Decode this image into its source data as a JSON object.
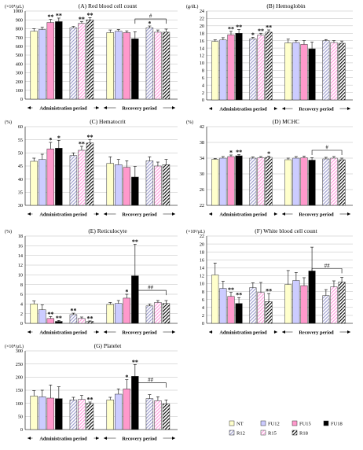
{
  "colors": {
    "NT": "#ffffcc",
    "FU12": "#ccccff",
    "FU15": "#ff99cc",
    "FU18": "#000000",
    "R12": "#9999cc",
    "R15": "#ffccff",
    "R18": "#000000",
    "edge": "#333333"
  },
  "legend": {
    "placement": "bottom-right",
    "items": [
      {
        "key": "NT",
        "label": "NT",
        "pattern": "solid"
      },
      {
        "key": "FU12",
        "label": "FU12",
        "pattern": "solid"
      },
      {
        "key": "FU15",
        "label": "FU15",
        "pattern": "solid"
      },
      {
        "key": "FU18",
        "label": "FU18",
        "pattern": "solid"
      },
      {
        "key": "R12",
        "label": "R12",
        "pattern": "hatch"
      },
      {
        "key": "R15",
        "label": "R15",
        "pattern": "hatch"
      },
      {
        "key": "R18",
        "label": "R18",
        "pattern": "hatch"
      }
    ]
  },
  "chart_data": [
    {
      "type": "bar",
      "title": "(A)  Red blood cell count",
      "ylabel": "(×10⁴/μL)",
      "ylim": [
        0,
        1000
      ],
      "yticks": [
        0,
        100,
        200,
        300,
        400,
        500,
        600,
        700,
        800,
        900,
        1000
      ],
      "period_labels": [
        "Administration  period",
        "Recovery period"
      ],
      "groups": [
        {
          "period": "Administration  period",
          "bars": [
            {
              "series": "NT",
              "value": 770,
              "err": 28,
              "sig": ""
            },
            {
              "series": "FU12",
              "value": 790,
              "err": 25,
              "sig": ""
            },
            {
              "series": "FU15",
              "value": 870,
              "err": 35,
              "sig": "**"
            },
            {
              "series": "FU18",
              "value": 880,
              "err": 40,
              "sig": "**"
            },
            {
              "series": "R12",
              "value": 810,
              "err": 15,
              "sig": ""
            },
            {
              "series": "R15",
              "value": 860,
              "err": 20,
              "sig": "**"
            },
            {
              "series": "R18",
              "value": 900,
              "err": 25,
              "sig": "**"
            }
          ]
        },
        {
          "period": "Recovery period",
          "bars": [
            {
              "series": "NT",
              "value": 755,
              "err": 30,
              "sig": ""
            },
            {
              "series": "FU12",
              "value": 770,
              "err": 20,
              "sig": ""
            },
            {
              "series": "FU15",
              "value": 755,
              "err": 20,
              "sig": ""
            },
            {
              "series": "FU18",
              "value": 685,
              "err": 80,
              "sig": ""
            },
            {
              "series": "R12",
              "value": 810,
              "err": 20,
              "sig": "*"
            },
            {
              "series": "R15",
              "value": 760,
              "err": 25,
              "sig": ""
            },
            {
              "series": "R18",
              "value": 760,
              "err": 35,
              "sig": ""
            }
          ]
        }
      ],
      "brackets": [
        {
          "group": 1,
          "from": "FU18",
          "to": "R18",
          "y": 910,
          "label": "#"
        }
      ]
    },
    {
      "type": "bar",
      "title": "(B)  Hemoglobin",
      "ylabel": "(g/dL)",
      "ylim": [
        0,
        24
      ],
      "yticks": [
        0,
        2,
        4,
        6,
        8,
        10,
        12,
        14,
        16,
        18,
        20,
        22,
        24
      ],
      "period_labels": [
        "Administration  period",
        "Recovery period"
      ],
      "groups": [
        {
          "period": "Administration  period",
          "bars": [
            {
              "series": "NT",
              "value": 15.8,
              "err": 0.4,
              "sig": ""
            },
            {
              "series": "FU12",
              "value": 16.2,
              "err": 0.6,
              "sig": ""
            },
            {
              "series": "FU15",
              "value": 17.6,
              "err": 0.9,
              "sig": "**"
            },
            {
              "series": "FU18",
              "value": 18.0,
              "err": 1.0,
              "sig": "**"
            },
            {
              "series": "R12",
              "value": 16.5,
              "err": 0.4,
              "sig": "*"
            },
            {
              "series": "R15",
              "value": 17.5,
              "err": 0.5,
              "sig": "**"
            },
            {
              "series": "R18",
              "value": 18.3,
              "err": 0.6,
              "sig": "**"
            }
          ]
        },
        {
          "period": "Recovery period",
          "bars": [
            {
              "series": "NT",
              "value": 15.4,
              "err": 1.0,
              "sig": ""
            },
            {
              "series": "FU12",
              "value": 15.5,
              "err": 0.5,
              "sig": ""
            },
            {
              "series": "FU15",
              "value": 15.0,
              "err": 1.0,
              "sig": ""
            },
            {
              "series": "FU18",
              "value": 13.8,
              "err": 1.8,
              "sig": ""
            },
            {
              "series": "R12",
              "value": 16.0,
              "err": 0.3,
              "sig": ""
            },
            {
              "series": "R15",
              "value": 15.5,
              "err": 0.5,
              "sig": ""
            },
            {
              "series": "R18",
              "value": 15.3,
              "err": 0.6,
              "sig": ""
            }
          ]
        }
      ],
      "brackets": []
    },
    {
      "type": "bar",
      "title": "(C)  Hematocrit",
      "ylabel": "(%)",
      "ylim": [
        30,
        60
      ],
      "yticks": [
        30,
        35,
        40,
        45,
        50,
        55,
        60
      ],
      "period_labels": [
        "Administration  period",
        "Recovery period"
      ],
      "groups": [
        {
          "period": "Administration  period",
          "bars": [
            {
              "series": "NT",
              "value": 46.8,
              "err": 1.2,
              "sig": ""
            },
            {
              "series": "FU12",
              "value": 47.5,
              "err": 2.0,
              "sig": ""
            },
            {
              "series": "FU15",
              "value": 51.5,
              "err": 2.5,
              "sig": "*"
            },
            {
              "series": "FU18",
              "value": 51.8,
              "err": 3.0,
              "sig": "*"
            },
            {
              "series": "R12",
              "value": 49.0,
              "err": 1.0,
              "sig": ""
            },
            {
              "series": "R15",
              "value": 51.0,
              "err": 1.5,
              "sig": "**"
            },
            {
              "series": "R18",
              "value": 53.8,
              "err": 1.2,
              "sig": "**"
            }
          ]
        },
        {
          "period": "Recovery period",
          "bars": [
            {
              "series": "NT",
              "value": 46.0,
              "err": 2.5,
              "sig": ""
            },
            {
              "series": "FU12",
              "value": 45.5,
              "err": 2.0,
              "sig": ""
            },
            {
              "series": "FU15",
              "value": 44.5,
              "err": 2.5,
              "sig": ""
            },
            {
              "series": "FU18",
              "value": 40.8,
              "err": 4.0,
              "sig": ""
            },
            {
              "series": "R12",
              "value": 47.0,
              "err": 1.5,
              "sig": ""
            },
            {
              "series": "R15",
              "value": 45.0,
              "err": 1.5,
              "sig": ""
            },
            {
              "series": "R18",
              "value": 45.5,
              "err": 2.0,
              "sig": ""
            }
          ]
        }
      ],
      "brackets": []
    },
    {
      "type": "bar",
      "title": "(D)  MCHC",
      "ylabel": "(%)",
      "ylim": [
        22,
        42
      ],
      "yticks": [
        22,
        26,
        30,
        34,
        38,
        42
      ],
      "period_labels": [
        "Administration  period",
        "Recovery period"
      ],
      "groups": [
        {
          "period": "Administration  period",
          "bars": [
            {
              "series": "NT",
              "value": 33.7,
              "err": 0.2,
              "sig": ""
            },
            {
              "series": "FU12",
              "value": 34.0,
              "err": 0.4,
              "sig": ""
            },
            {
              "series": "FU15",
              "value": 34.4,
              "err": 0.4,
              "sig": "*"
            },
            {
              "series": "FU18",
              "value": 34.6,
              "err": 0.3,
              "sig": "**"
            },
            {
              "series": "R12",
              "value": 34.0,
              "err": 0.3,
              "sig": ""
            },
            {
              "series": "R15",
              "value": 34.1,
              "err": 0.3,
              "sig": ""
            },
            {
              "series": "R18",
              "value": 34.2,
              "err": 0.3,
              "sig": "*"
            }
          ]
        },
        {
          "period": "Recovery period",
          "bars": [
            {
              "series": "NT",
              "value": 33.6,
              "err": 0.4,
              "sig": ""
            },
            {
              "series": "FU12",
              "value": 34.0,
              "err": 0.4,
              "sig": ""
            },
            {
              "series": "FU15",
              "value": 34.1,
              "err": 0.4,
              "sig": ""
            },
            {
              "series": "FU18",
              "value": 33.5,
              "err": 0.6,
              "sig": ""
            },
            {
              "series": "R12",
              "value": 33.8,
              "err": 0.4,
              "sig": ""
            },
            {
              "series": "R15",
              "value": 34.0,
              "err": 0.4,
              "sig": ""
            },
            {
              "series": "R18",
              "value": 33.6,
              "err": 0.4,
              "sig": ""
            }
          ]
        }
      ],
      "brackets": [
        {
          "group": 1,
          "from": "FU18",
          "to": "R18",
          "y": 36,
          "label": "#"
        }
      ]
    },
    {
      "type": "bar",
      "title": "(E)  Reticulocyte",
      "ylabel": "(%)",
      "ylim": [
        0,
        18
      ],
      "yticks": [
        0,
        2,
        4,
        6,
        8,
        10,
        12,
        14,
        16,
        18
      ],
      "period_labels": [
        "Administration  period",
        "Recovery period"
      ],
      "groups": [
        {
          "period": "Administration  period",
          "bars": [
            {
              "series": "NT",
              "value": 4.0,
              "err": 0.6,
              "sig": ""
            },
            {
              "series": "FU12",
              "value": 2.8,
              "err": 1.0,
              "sig": ""
            },
            {
              "series": "FU15",
              "value": 1.0,
              "err": 0.4,
              "sig": "**"
            },
            {
              "series": "FU18",
              "value": 0.4,
              "err": 0.2,
              "sig": "**"
            },
            {
              "series": "R12",
              "value": 1.8,
              "err": 0.3,
              "sig": "**"
            },
            {
              "series": "R15",
              "value": 1.0,
              "err": 0.3,
              "sig": ""
            },
            {
              "series": "R18",
              "value": 0.4,
              "err": 0.1,
              "sig": "**"
            }
          ]
        },
        {
          "period": "Recovery period",
          "bars": [
            {
              "series": "NT",
              "value": 3.9,
              "err": 0.4,
              "sig": ""
            },
            {
              "series": "FU12",
              "value": 4.1,
              "err": 0.6,
              "sig": ""
            },
            {
              "series": "FU15",
              "value": 5.2,
              "err": 0.8,
              "sig": "*"
            },
            {
              "series": "FU18",
              "value": 9.8,
              "err": 6.5,
              "sig": "**"
            },
            {
              "series": "R12",
              "value": 3.6,
              "err": 0.4,
              "sig": ""
            },
            {
              "series": "R15",
              "value": 4.3,
              "err": 0.4,
              "sig": ""
            },
            {
              "series": "R18",
              "value": 4.1,
              "err": 0.6,
              "sig": ""
            }
          ]
        }
      ],
      "brackets": [
        {
          "group": 1,
          "from": "FU18",
          "to": "R18",
          "y": 6.8,
          "label": "##"
        }
      ]
    },
    {
      "type": "bar",
      "title": "(F)  White blood cell count",
      "ylabel": "(×10³/μL)",
      "ylim": [
        0,
        22
      ],
      "yticks": [
        0,
        2,
        4,
        6,
        8,
        10,
        12,
        14,
        16,
        18,
        20,
        22
      ],
      "period_labels": [
        "Administration  period",
        "Recovery period"
      ],
      "groups": [
        {
          "period": "Administration  period",
          "bars": [
            {
              "series": "NT",
              "value": 12.2,
              "err": 3.0,
              "sig": ""
            },
            {
              "series": "FU12",
              "value": 8.8,
              "err": 1.8,
              "sig": ""
            },
            {
              "series": "FU15",
              "value": 6.8,
              "err": 1.0,
              "sig": "**"
            },
            {
              "series": "FU18",
              "value": 5.0,
              "err": 1.5,
              "sig": "**"
            },
            {
              "series": "R12",
              "value": 9.0,
              "err": 1.2,
              "sig": ""
            },
            {
              "series": "R15",
              "value": 7.8,
              "err": 2.5,
              "sig": ""
            },
            {
              "series": "R18",
              "value": 5.5,
              "err": 2.0,
              "sig": "**"
            }
          ]
        },
        {
          "period": "Recovery period",
          "bars": [
            {
              "series": "NT",
              "value": 9.8,
              "err": 3.5,
              "sig": ""
            },
            {
              "series": "FU12",
              "value": 10.8,
              "err": 2.0,
              "sig": ""
            },
            {
              "series": "FU15",
              "value": 9.5,
              "err": 2.0,
              "sig": ""
            },
            {
              "series": "FU18",
              "value": 13.2,
              "err": 6.0,
              "sig": ""
            },
            {
              "series": "R12",
              "value": 7.0,
              "err": 1.5,
              "sig": ""
            },
            {
              "series": "R15",
              "value": 9.2,
              "err": 1.5,
              "sig": ""
            },
            {
              "series": "R18",
              "value": 10.4,
              "err": 1.2,
              "sig": ""
            }
          ]
        }
      ],
      "brackets": [
        {
          "group": 1,
          "from": "FU18",
          "to": "R18",
          "y": 13.8,
          "label": "##"
        }
      ]
    },
    {
      "type": "bar",
      "title": "(G)  Platelet",
      "ylabel": "(×10⁴/μL)",
      "ylim": [
        0,
        300
      ],
      "yticks": [
        0,
        50,
        100,
        150,
        200,
        250,
        300
      ],
      "period_labels": [
        "Administration  period",
        "Recovery period"
      ],
      "groups": [
        {
          "period": "Administration  period",
          "bars": [
            {
              "series": "NT",
              "value": 128,
              "err": 20,
              "sig": ""
            },
            {
              "series": "FU12",
              "value": 125,
              "err": 25,
              "sig": ""
            },
            {
              "series": "FU15",
              "value": 120,
              "err": 50,
              "sig": ""
            },
            {
              "series": "FU18",
              "value": 118,
              "err": 45,
              "sig": ""
            },
            {
              "series": "R12",
              "value": 113,
              "err": 10,
              "sig": ""
            },
            {
              "series": "R15",
              "value": 115,
              "err": 15,
              "sig": ""
            },
            {
              "series": "R18",
              "value": 100,
              "err": 5,
              "sig": "**"
            }
          ]
        },
        {
          "period": "Recovery period",
          "bars": [
            {
              "series": "NT",
              "value": 113,
              "err": 10,
              "sig": ""
            },
            {
              "series": "FU12",
              "value": 135,
              "err": 20,
              "sig": ""
            },
            {
              "series": "FU15",
              "value": 155,
              "err": 35,
              "sig": "*"
            },
            {
              "series": "FU18",
              "value": 203,
              "err": 45,
              "sig": "**"
            },
            {
              "series": "R12",
              "value": 118,
              "err": 15,
              "sig": ""
            },
            {
              "series": "R15",
              "value": 110,
              "err": 15,
              "sig": ""
            },
            {
              "series": "R18",
              "value": 98,
              "err": 15,
              "sig": ""
            }
          ]
        }
      ],
      "brackets": [
        {
          "group": 1,
          "from": "FU18",
          "to": "R18",
          "y": 178,
          "label": "##"
        }
      ]
    }
  ]
}
